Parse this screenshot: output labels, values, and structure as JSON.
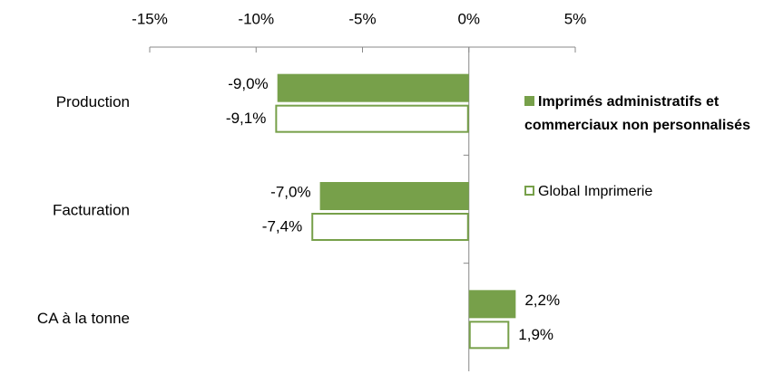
{
  "chart_data": {
    "type": "bar",
    "orientation": "horizontal",
    "categories": [
      "Production",
      "Facturation",
      "CA à la tonne"
    ],
    "series": [
      {
        "name": "Imprimés administratifs et commerciaux non personnalisés",
        "color": "#77a04a",
        "fill": "#77a04a",
        "values": [
          -9.0,
          -7.0,
          2.2
        ],
        "value_labels": [
          "-9,0%",
          "-7,0%",
          "2,2%"
        ]
      },
      {
        "name": "Global Imprimerie",
        "color": "#77a04a",
        "fill": "#ffffff",
        "values": [
          -9.1,
          -7.4,
          1.9
        ],
        "value_labels": [
          "-9,1%",
          "-7,4%",
          "1,9%"
        ]
      }
    ],
    "xlim": [
      -15,
      5
    ],
    "xticks": [
      {
        "value": -15,
        "label": "-15%"
      },
      {
        "value": -10,
        "label": "-10%"
      },
      {
        "value": -5,
        "label": "-5%"
      },
      {
        "value": 0,
        "label": "0%"
      },
      {
        "value": 5,
        "label": "5%"
      }
    ],
    "legend": "right"
  }
}
